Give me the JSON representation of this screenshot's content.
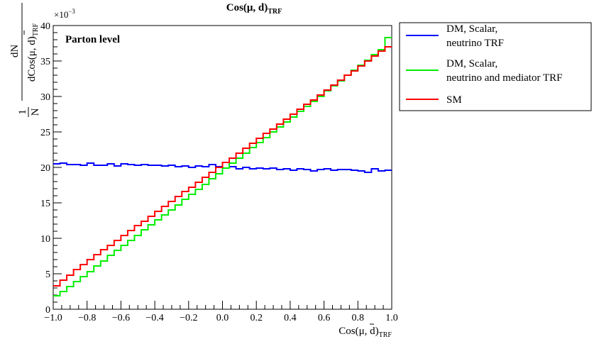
{
  "chart_data": {
    "type": "line",
    "title": "Cos(μ, d)",
    "title_sub": "TRF",
    "annotation": "Parton level",
    "xlabel": "Cos(μ,  d)",
    "xlabel_sub": "TRF",
    "ylabel_prefix": "1",
    "ylabel_prefix_den": "N",
    "ylabel_num": "dN",
    "ylabel_den": "dCos(μ,  d)",
    "ylabel_den_sub": "TRF",
    "yexponent_base": "×10",
    "yexponent": "−3",
    "xlim": [
      -1.0,
      1.0
    ],
    "ylim": [
      0,
      40
    ],
    "xticks": [
      {
        "value": -1.0,
        "label": "−1.0"
      },
      {
        "value": -0.8,
        "label": "−0.8"
      },
      {
        "value": -0.6,
        "label": "−0.6"
      },
      {
        "value": -0.4,
        "label": "−0.4"
      },
      {
        "value": -0.2,
        "label": "−0.2"
      },
      {
        "value": 0.0,
        "label": "0.0"
      },
      {
        "value": 0.2,
        "label": "0.2"
      },
      {
        "value": 0.4,
        "label": "0.4"
      },
      {
        "value": 0.6,
        "label": "0.6"
      },
      {
        "value": 0.8,
        "label": "0.8"
      },
      {
        "value": 1.0,
        "label": "1.0"
      }
    ],
    "yticks": [
      {
        "value": 0,
        "label": "0"
      },
      {
        "value": 5,
        "label": "5"
      },
      {
        "value": 10,
        "label": "10"
      },
      {
        "value": 15,
        "label": "15"
      },
      {
        "value": 20,
        "label": "20"
      },
      {
        "value": 25,
        "label": "25"
      },
      {
        "value": 30,
        "label": "30"
      },
      {
        "value": 35,
        "label": "35"
      },
      {
        "value": 40,
        "label": "40"
      }
    ],
    "grid": false,
    "legend_position": "outside-right",
    "bins": 50,
    "series": [
      {
        "name": "DM, Scalar, neutrino TRF",
        "legend_lines": [
          "DM, Scalar,",
          "neutrino TRF"
        ],
        "color": "#0000ff",
        "values": [
          20.5,
          20.6,
          20.4,
          20.4,
          20.3,
          20.6,
          20.3,
          20.3,
          20.5,
          20.2,
          20.5,
          20.4,
          20.3,
          20.4,
          20.3,
          20.3,
          20.2,
          20.3,
          20.1,
          20.2,
          20.0,
          20.2,
          20.1,
          20.4,
          20.1,
          19.9,
          20.1,
          19.8,
          20.0,
          19.8,
          19.9,
          19.8,
          19.9,
          19.7,
          19.8,
          19.6,
          19.8,
          19.7,
          19.5,
          19.7,
          19.8,
          19.6,
          19.7,
          19.7,
          19.6,
          19.5,
          19.3,
          19.8,
          19.5,
          19.6
        ]
      },
      {
        "name": "DM, Scalar, neutrino and mediator TRF",
        "legend_lines": [
          "DM, Scalar,",
          "neutrino and mediator TRF"
        ],
        "color": "#00ee00",
        "values": [
          1.9,
          2.5,
          3.2,
          3.9,
          4.6,
          5.3,
          6.1,
          6.8,
          7.6,
          8.3,
          9.0,
          9.7,
          10.4,
          11.2,
          11.9,
          12.6,
          13.3,
          14.0,
          14.7,
          15.5,
          16.2,
          16.9,
          17.6,
          18.4,
          19.1,
          19.9,
          20.6,
          21.3,
          22.0,
          22.8,
          23.5,
          24.2,
          25.0,
          25.7,
          26.4,
          27.1,
          27.9,
          28.6,
          29.3,
          30.0,
          30.8,
          31.5,
          32.2,
          33.0,
          33.7,
          34.4,
          35.1,
          35.9,
          36.6,
          38.3
        ]
      },
      {
        "name": "SM",
        "legend_lines": [
          "SM"
        ],
        "color": "#ff0000",
        "values": [
          3.3,
          4.1,
          4.8,
          5.6,
          6.3,
          7.0,
          7.7,
          8.4,
          9.0,
          9.7,
          10.4,
          11.1,
          11.8,
          12.4,
          13.1,
          13.8,
          14.5,
          15.2,
          15.9,
          16.6,
          17.2,
          17.9,
          18.6,
          19.3,
          20.0,
          20.7,
          21.3,
          22.0,
          22.7,
          23.4,
          24.1,
          24.8,
          25.4,
          26.1,
          26.8,
          27.5,
          28.2,
          28.9,
          29.5,
          30.2,
          30.9,
          31.6,
          32.3,
          33.0,
          33.6,
          34.3,
          35.0,
          35.7,
          36.4,
          37.0
        ]
      }
    ]
  }
}
